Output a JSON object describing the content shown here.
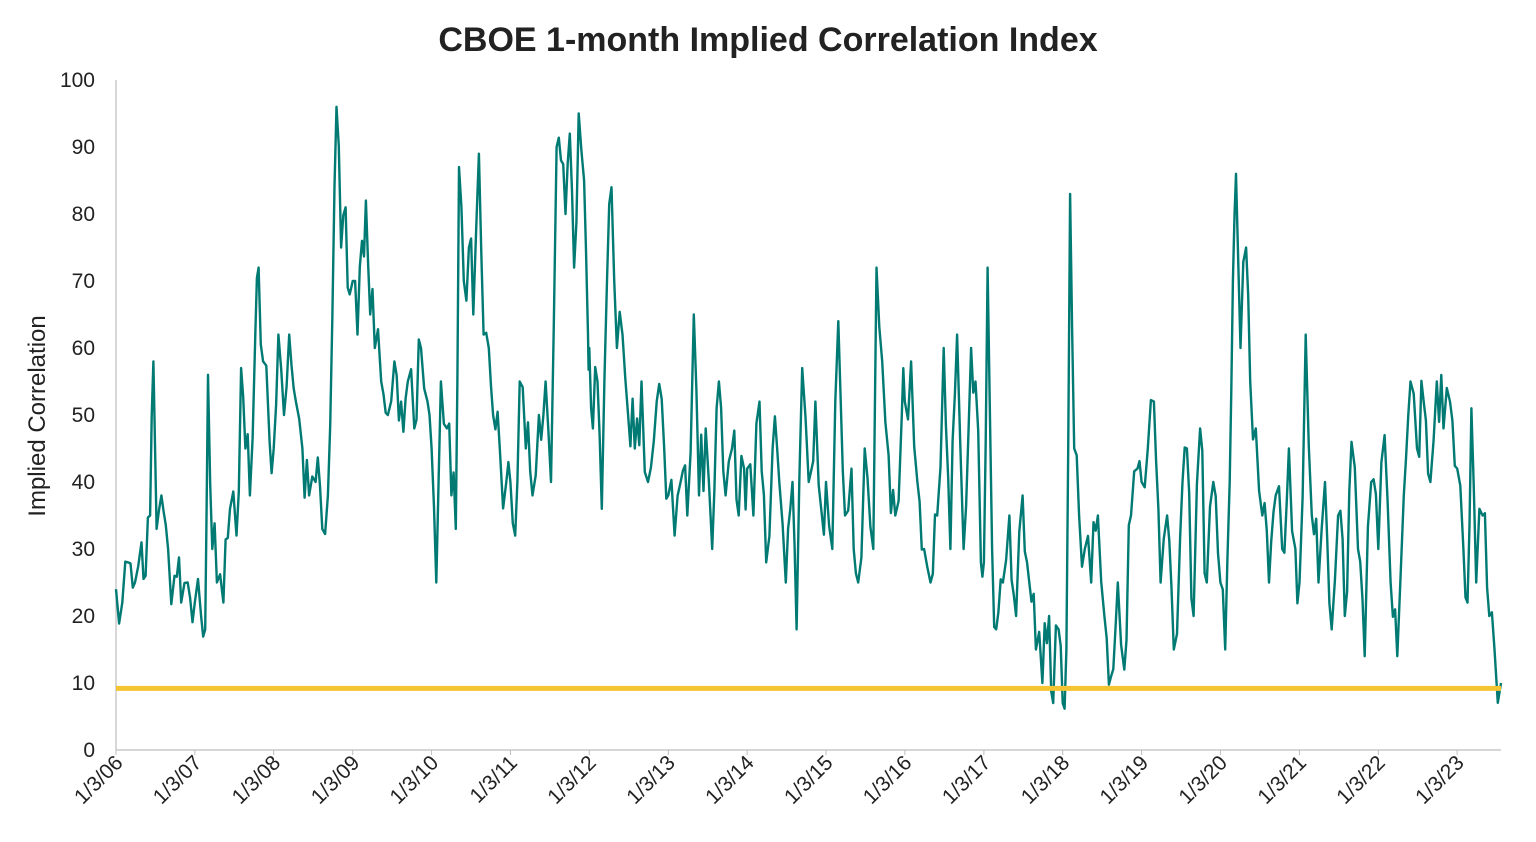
{
  "chart_data": {
    "type": "line",
    "title": "CBOE 1-month Implied Correlation Index",
    "ylabel": "Implied Correlation",
    "xlabel": "",
    "ylim": [
      0,
      100
    ],
    "xlim": [
      "2006-01-03",
      "2023-07-25"
    ],
    "yticks": [
      "0",
      "10",
      "20",
      "30",
      "40",
      "50",
      "60",
      "70",
      "80",
      "90",
      "100"
    ],
    "xticks": [
      {
        "label": "1/3/06",
        "date": "2006-01-03"
      },
      {
        "label": "1/3/07",
        "date": "2007-01-03"
      },
      {
        "label": "1/3/08",
        "date": "2008-01-03"
      },
      {
        "label": "1/3/09",
        "date": "2009-01-03"
      },
      {
        "label": "1/3/10",
        "date": "2010-01-03"
      },
      {
        "label": "1/3/11",
        "date": "2011-01-03"
      },
      {
        "label": "1/3/12",
        "date": "2012-01-03"
      },
      {
        "label": "1/3/13",
        "date": "2013-01-03"
      },
      {
        "label": "1/3/14",
        "date": "2014-01-03"
      },
      {
        "label": "1/3/15",
        "date": "2015-01-03"
      },
      {
        "label": "1/3/16",
        "date": "2016-01-03"
      },
      {
        "label": "1/3/17",
        "date": "2017-01-03"
      },
      {
        "label": "1/3/18",
        "date": "2018-01-03"
      },
      {
        "label": "1/3/19",
        "date": "2019-01-03"
      },
      {
        "label": "1/3/20",
        "date": "2020-01-03"
      },
      {
        "label": "1/3/21",
        "date": "2021-01-03"
      },
      {
        "label": "1/3/22",
        "date": "2022-01-03"
      },
      {
        "label": "1/3/23",
        "date": "2023-01-03"
      }
    ],
    "grid": false,
    "legend": "none",
    "series": [
      {
        "color": "#007a73",
        "points": [
          [
            "2006-01-03",
            24
          ],
          [
            "2006-02-01",
            22
          ],
          [
            "2006-03-01",
            28
          ],
          [
            "2006-04-01",
            25
          ],
          [
            "2006-05-01",
            31
          ],
          [
            "2006-05-20",
            26
          ],
          [
            "2006-06-10",
            35
          ],
          [
            "2006-06-25",
            58
          ],
          [
            "2006-07-10",
            33
          ],
          [
            "2006-08-01",
            38
          ],
          [
            "2006-09-01",
            30
          ],
          [
            "2006-10-01",
            26
          ],
          [
            "2006-11-01",
            22
          ],
          [
            "2006-12-01",
            25
          ],
          [
            "2007-01-03",
            22
          ],
          [
            "2007-02-01",
            20
          ],
          [
            "2007-02-20",
            18
          ],
          [
            "2007-03-05",
            56
          ],
          [
            "2007-03-25",
            30
          ],
          [
            "2007-04-15",
            25
          ],
          [
            "2007-05-15",
            22
          ],
          [
            "2007-06-15",
            36
          ],
          [
            "2007-07-15",
            32
          ],
          [
            "2007-08-05",
            57
          ],
          [
            "2007-08-25",
            45
          ],
          [
            "2007-09-15",
            38
          ],
          [
            "2007-10-10",
            62
          ],
          [
            "2007-10-25",
            72
          ],
          [
            "2007-11-15",
            58
          ],
          [
            "2007-12-15",
            46
          ],
          [
            "2008-01-03",
            45
          ],
          [
            "2008-01-25",
            62
          ],
          [
            "2008-02-20",
            50
          ],
          [
            "2008-03-15",
            62
          ],
          [
            "2008-04-15",
            52
          ],
          [
            "2008-05-15",
            45
          ],
          [
            "2008-06-15",
            38
          ],
          [
            "2008-07-15",
            40
          ],
          [
            "2008-08-15",
            33
          ],
          [
            "2008-09-10",
            38
          ],
          [
            "2008-10-01",
            65
          ],
          [
            "2008-10-20",
            96
          ],
          [
            "2008-11-10",
            75
          ],
          [
            "2008-12-01",
            81
          ],
          [
            "2008-12-20",
            68
          ],
          [
            "2009-01-03",
            70
          ],
          [
            "2009-01-25",
            62
          ],
          [
            "2009-02-15",
            76
          ],
          [
            "2009-03-05",
            82
          ],
          [
            "2009-03-25",
            65
          ],
          [
            "2009-04-15",
            60
          ],
          [
            "2009-05-15",
            55
          ],
          [
            "2009-06-15",
            50
          ],
          [
            "2009-07-15",
            58
          ],
          [
            "2009-08-15",
            52
          ],
          [
            "2009-09-15",
            55
          ],
          [
            "2009-10-15",
            48
          ],
          [
            "2009-11-15",
            60
          ],
          [
            "2009-12-15",
            52
          ],
          [
            "2010-01-03",
            45
          ],
          [
            "2010-01-25",
            25
          ],
          [
            "2010-02-15",
            55
          ],
          [
            "2010-03-15",
            48
          ],
          [
            "2010-04-05",
            38
          ],
          [
            "2010-04-25",
            33
          ],
          [
            "2010-05-10",
            87
          ],
          [
            "2010-06-01",
            70
          ],
          [
            "2010-06-25",
            75
          ],
          [
            "2010-07-15",
            65
          ],
          [
            "2010-08-10",
            89
          ],
          [
            "2010-09-01",
            62
          ],
          [
            "2010-09-25",
            60
          ],
          [
            "2010-10-15",
            50
          ],
          [
            "2010-11-15",
            45
          ],
          [
            "2010-12-15",
            40
          ],
          [
            "2011-01-03",
            40
          ],
          [
            "2011-01-25",
            32
          ],
          [
            "2011-02-15",
            55
          ],
          [
            "2011-03-15",
            45
          ],
          [
            "2011-04-15",
            38
          ],
          [
            "2011-05-15",
            50
          ],
          [
            "2011-06-15",
            55
          ],
          [
            "2011-07-10",
            40
          ],
          [
            "2011-08-05",
            90
          ],
          [
            "2011-08-25",
            88
          ],
          [
            "2011-09-15",
            80
          ],
          [
            "2011-10-05",
            92
          ],
          [
            "2011-10-25",
            72
          ],
          [
            "2011-11-15",
            95
          ],
          [
            "2011-12-10",
            85
          ],
          [
            "2011-12-28",
            62
          ],
          [
            "2012-01-03",
            60
          ],
          [
            "2012-01-20",
            48
          ],
          [
            "2012-02-10",
            55
          ],
          [
            "2012-03-01",
            36
          ],
          [
            "2012-03-25",
            70
          ],
          [
            "2012-04-15",
            84
          ],
          [
            "2012-05-10",
            60
          ],
          [
            "2012-06-05",
            62
          ],
          [
            "2012-07-01",
            50
          ],
          [
            "2012-08-01",
            45
          ],
          [
            "2012-09-01",
            55
          ],
          [
            "2012-10-01",
            40
          ],
          [
            "2012-11-10",
            52
          ],
          [
            "2012-12-15",
            45
          ],
          [
            "2013-01-03",
            38
          ],
          [
            "2013-02-01",
            32
          ],
          [
            "2013-03-01",
            40
          ],
          [
            "2013-04-01",
            35
          ],
          [
            "2013-05-01",
            65
          ],
          [
            "2013-05-25",
            38
          ],
          [
            "2013-06-25",
            48
          ],
          [
            "2013-07-25",
            30
          ],
          [
            "2013-08-25",
            55
          ],
          [
            "2013-09-25",
            38
          ],
          [
            "2013-10-25",
            45
          ],
          [
            "2013-11-25",
            35
          ],
          [
            "2013-12-20",
            42
          ],
          [
            "2014-01-03",
            42
          ],
          [
            "2014-02-01",
            35
          ],
          [
            "2014-03-01",
            52
          ],
          [
            "2014-04-01",
            28
          ],
          [
            "2014-05-01",
            45
          ],
          [
            "2014-06-01",
            40
          ],
          [
            "2014-07-01",
            25
          ],
          [
            "2014-08-01",
            40
          ],
          [
            "2014-08-20",
            18
          ],
          [
            "2014-09-15",
            57
          ],
          [
            "2014-10-15",
            40
          ],
          [
            "2014-11-15",
            52
          ],
          [
            "2014-12-15",
            35
          ],
          [
            "2015-01-03",
            40
          ],
          [
            "2015-02-01",
            30
          ],
          [
            "2015-03-01",
            64
          ],
          [
            "2015-04-01",
            35
          ],
          [
            "2015-05-01",
            42
          ],
          [
            "2015-06-01",
            25
          ],
          [
            "2015-07-01",
            45
          ],
          [
            "2015-08-10",
            30
          ],
          [
            "2015-08-25",
            72
          ],
          [
            "2015-09-20",
            58
          ],
          [
            "2015-10-20",
            44
          ],
          [
            "2015-11-20",
            35
          ],
          [
            "2015-12-20",
            50
          ],
          [
            "2016-01-03",
            52
          ],
          [
            "2016-02-01",
            58
          ],
          [
            "2016-03-01",
            40
          ],
          [
            "2016-04-01",
            30
          ],
          [
            "2016-05-01",
            25
          ],
          [
            "2016-06-01",
            35
          ],
          [
            "2016-07-01",
            60
          ],
          [
            "2016-08-01",
            30
          ],
          [
            "2016-09-01",
            62
          ],
          [
            "2016-10-01",
            30
          ],
          [
            "2016-11-05",
            60
          ],
          [
            "2016-11-25",
            55
          ],
          [
            "2016-12-20",
            28
          ],
          [
            "2017-01-03",
            28
          ],
          [
            "2017-01-20",
            72
          ],
          [
            "2017-02-10",
            30
          ],
          [
            "2017-03-01",
            18
          ],
          [
            "2017-04-01",
            25
          ],
          [
            "2017-05-01",
            35
          ],
          [
            "2017-06-01",
            20
          ],
          [
            "2017-07-01",
            38
          ],
          [
            "2017-08-01",
            25
          ],
          [
            "2017-09-01",
            15
          ],
          [
            "2017-10-01",
            10
          ],
          [
            "2017-11-01",
            20
          ],
          [
            "2017-11-20",
            7
          ],
          [
            "2017-12-15",
            18
          ],
          [
            "2018-01-03",
            7
          ],
          [
            "2018-01-20",
            15
          ],
          [
            "2018-02-06",
            83
          ],
          [
            "2018-02-25",
            45
          ],
          [
            "2018-03-20",
            35
          ],
          [
            "2018-04-15",
            30
          ],
          [
            "2018-05-15",
            25
          ],
          [
            "2018-06-15",
            35
          ],
          [
            "2018-07-15",
            20
          ],
          [
            "2018-08-15",
            11
          ],
          [
            "2018-09-15",
            25
          ],
          [
            "2018-10-15",
            12
          ],
          [
            "2018-11-15",
            35
          ],
          [
            "2018-12-15",
            42
          ],
          [
            "2019-01-03",
            40
          ],
          [
            "2019-02-01",
            45
          ],
          [
            "2019-03-01",
            52
          ],
          [
            "2019-04-01",
            25
          ],
          [
            "2019-05-01",
            35
          ],
          [
            "2019-06-01",
            15
          ],
          [
            "2019-07-01",
            32
          ],
          [
            "2019-08-01",
            45
          ],
          [
            "2019-09-01",
            20
          ],
          [
            "2019-10-01",
            48
          ],
          [
            "2019-11-01",
            25
          ],
          [
            "2019-12-01",
            40
          ],
          [
            "2020-01-03",
            25
          ],
          [
            "2020-01-25",
            15
          ],
          [
            "2020-02-15",
            40
          ],
          [
            "2020-03-01",
            70
          ],
          [
            "2020-03-15",
            86
          ],
          [
            "2020-04-05",
            60
          ],
          [
            "2020-05-01",
            75
          ],
          [
            "2020-05-20",
            55
          ],
          [
            "2020-06-15",
            48
          ],
          [
            "2020-07-15",
            35
          ],
          [
            "2020-08-15",
            25
          ],
          [
            "2020-09-15",
            38
          ],
          [
            "2020-10-15",
            30
          ],
          [
            "2020-11-15",
            45
          ],
          [
            "2020-12-15",
            30
          ],
          [
            "2021-01-03",
            25
          ],
          [
            "2021-02-01",
            62
          ],
          [
            "2021-03-01",
            35
          ],
          [
            "2021-04-01",
            25
          ],
          [
            "2021-05-01",
            40
          ],
          [
            "2021-06-01",
            18
          ],
          [
            "2021-07-01",
            35
          ],
          [
            "2021-08-01",
            20
          ],
          [
            "2021-09-01",
            46
          ],
          [
            "2021-10-01",
            30
          ],
          [
            "2021-11-01",
            14
          ],
          [
            "2021-12-01",
            40
          ],
          [
            "2022-01-03",
            30
          ],
          [
            "2022-02-01",
            47
          ],
          [
            "2022-03-01",
            25
          ],
          [
            "2022-04-01",
            14
          ],
          [
            "2022-05-01",
            38
          ],
          [
            "2022-06-01",
            55
          ],
          [
            "2022-07-01",
            45
          ],
          [
            "2022-08-01",
            52
          ],
          [
            "2022-09-01",
            40
          ],
          [
            "2022-10-01",
            55
          ],
          [
            "2022-11-01",
            48
          ],
          [
            "2022-12-01",
            52
          ],
          [
            "2023-01-03",
            42
          ],
          [
            "2023-02-01",
            30
          ],
          [
            "2023-02-20",
            22
          ],
          [
            "2023-03-10",
            51
          ],
          [
            "2023-04-01",
            25
          ],
          [
            "2023-05-01",
            35
          ],
          [
            "2023-06-01",
            20
          ],
          [
            "2023-06-25",
            15
          ],
          [
            "2023-07-25",
            10
          ]
        ]
      }
    ],
    "reference_line": {
      "y": 9.2,
      "color": "#f5c431"
    }
  }
}
